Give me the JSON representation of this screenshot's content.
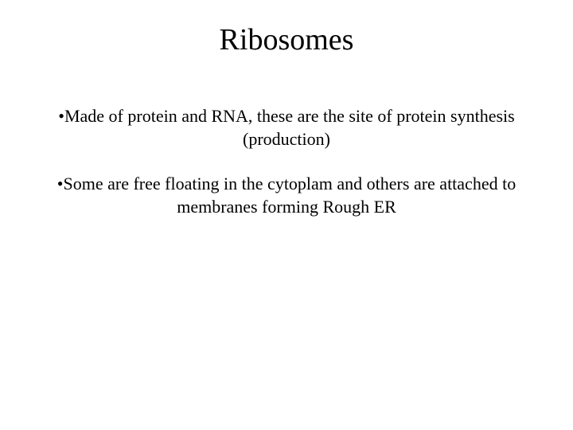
{
  "title": "Ribosomes",
  "bullets": [
    {
      "marker": "•",
      "line1": "Made of protein and RNA, these are the site of protein synthesis",
      "line2": "(production)"
    },
    {
      "marker": "•",
      "line1": "Some are free floating in the cytoplam and others are attached to",
      "line2": "membranes forming Rough ER"
    }
  ],
  "styling": {
    "background_color": "#ffffff",
    "text_color": "#000000",
    "font_family": "Times New Roman",
    "title_fontsize": 38,
    "body_fontsize": 22
  }
}
